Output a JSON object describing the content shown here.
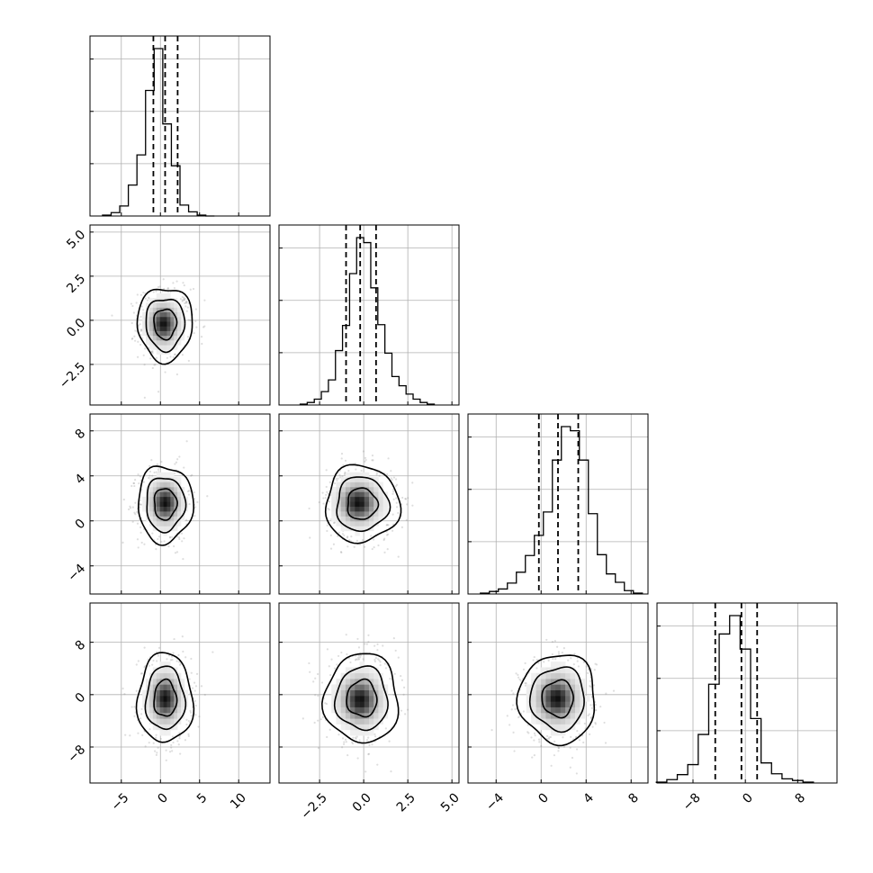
{
  "chart_data": {
    "type": "corner",
    "grid": true,
    "parameters": [
      {
        "xlim": [
          -9,
          14
        ],
        "xticks": [
          -5,
          0,
          5,
          10
        ],
        "tick_labels": [
          "−5",
          "0",
          "5",
          "10"
        ]
      },
      {
        "xlim": [
          -4.8,
          5.4
        ],
        "xticks": [
          -2.5,
          0.0,
          2.5,
          5.0
        ],
        "tick_labels": [
          "−2.5",
          "0.0",
          "2.5",
          "5.0"
        ]
      },
      {
        "xlim": [
          -6.5,
          9.5
        ],
        "xticks": [
          -4,
          0,
          4,
          8
        ],
        "tick_labels": [
          "−4",
          "0",
          "4",
          "8"
        ]
      },
      {
        "xlim": [
          -13.5,
          14
        ],
        "xticks": [
          -8,
          0,
          8
        ],
        "tick_labels": [
          "−8",
          "0",
          "8"
        ]
      }
    ],
    "y_tick_labels": {
      "1": [
        "−2.5",
        "0.0",
        "2.5",
        "5.0"
      ],
      "2": [
        "−4",
        "0",
        "4",
        "8"
      ],
      "3": [
        "−8",
        "0",
        "8"
      ]
    },
    "y_ticks": {
      "1": [
        -2.5,
        0.0,
        2.5,
        5.0
      ],
      "2": [
        -4,
        0,
        4,
        8
      ],
      "3": [
        -8,
        0,
        8
      ]
    },
    "y_lims": {
      "1": [
        -4.8,
        5.4
      ],
      "2": [
        -6.5,
        9.5
      ],
      "3": [
        -13.5,
        14
      ]
    },
    "histograms": [
      {
        "bin_edges": [
          -7.4,
          -6.3,
          -5.2,
          -4.1,
          -3.0,
          -1.9,
          -0.8,
          0.3,
          1.4,
          2.5,
          3.6,
          4.7,
          5.8,
          6.9
        ],
        "counts": [
          1,
          4,
          12,
          37,
          73,
          150,
          200,
          110,
          60,
          13,
          5,
          1,
          0
        ],
        "quantiles": [
          -0.9,
          0.6,
          2.2
        ]
      },
      {
        "bin_edges": [
          -3.6,
          -3.2,
          -2.8,
          -2.4,
          -2.0,
          -1.6,
          -1.2,
          -0.8,
          -0.4,
          0.0,
          0.4,
          0.8,
          1.2,
          1.6,
          2.0,
          2.4,
          2.8,
          3.2,
          3.6,
          4.0
        ],
        "counts": [
          1,
          3,
          7,
          16,
          30,
          65,
          95,
          157,
          200,
          194,
          140,
          96,
          62,
          34,
          23,
          13,
          7,
          3,
          1
        ],
        "quantiles": [
          -1.0,
          -0.2,
          0.7
        ]
      },
      {
        "bin_edges": [
          -5.4,
          -4.6,
          -3.8,
          -3.0,
          -2.2,
          -1.4,
          -0.6,
          0.2,
          1.0,
          1.8,
          2.6,
          3.4,
          4.2,
          5.0,
          5.8,
          6.6,
          7.4,
          8.2,
          9.0
        ],
        "counts": [
          1,
          3,
          6,
          13,
          26,
          46,
          70,
          98,
          160,
          200,
          195,
          160,
          96,
          47,
          24,
          14,
          4,
          1
        ],
        "quantiles": [
          -0.2,
          1.5,
          3.3
        ]
      },
      {
        "bin_edges": [
          -13.6,
          -12.0,
          -10.4,
          -8.8,
          -7.2,
          -5.6,
          -4.0,
          -2.4,
          -0.8,
          0.8,
          2.4,
          4.0,
          5.6,
          7.2,
          8.8,
          10.4
        ],
        "counts": [
          1,
          4,
          10,
          22,
          58,
          118,
          178,
          200,
          160,
          77,
          24,
          11,
          5,
          3,
          1
        ],
        "quantiles": [
          -4.6,
          -0.6,
          1.8
        ]
      }
    ],
    "panels_2d": [
      {
        "row": 1,
        "col": 0,
        "center": [
          0.6,
          -0.2
        ],
        "sigma": [
          1.6,
          0.95
        ],
        "peak": [
          0.4,
          -0.2
        ]
      },
      {
        "row": 2,
        "col": 0,
        "center": [
          0.6,
          1.5
        ],
        "sigma": [
          1.6,
          1.55
        ],
        "peak": [
          0.6,
          1.6
        ]
      },
      {
        "row": 2,
        "col": 1,
        "center": [
          -0.1,
          1.5
        ],
        "sigma": [
          0.95,
          1.55
        ],
        "peak": [
          -0.3,
          1.6
        ]
      },
      {
        "row": 3,
        "col": 0,
        "center": [
          0.6,
          -0.6
        ],
        "sigma": [
          1.6,
          3.1
        ],
        "peak": [
          0.6,
          -0.6
        ]
      },
      {
        "row": 3,
        "col": 1,
        "center": [
          -0.1,
          -0.6
        ],
        "sigma": [
          0.95,
          3.1
        ],
        "peak": [
          -0.2,
          -0.8
        ]
      },
      {
        "row": 3,
        "col": 2,
        "center": [
          1.5,
          -0.6
        ],
        "sigma": [
          1.55,
          3.1
        ],
        "peak": [
          1.4,
          -0.6
        ]
      }
    ],
    "contour_levels_sigma": [
      0.9,
      1.55,
      2.2
    ]
  }
}
